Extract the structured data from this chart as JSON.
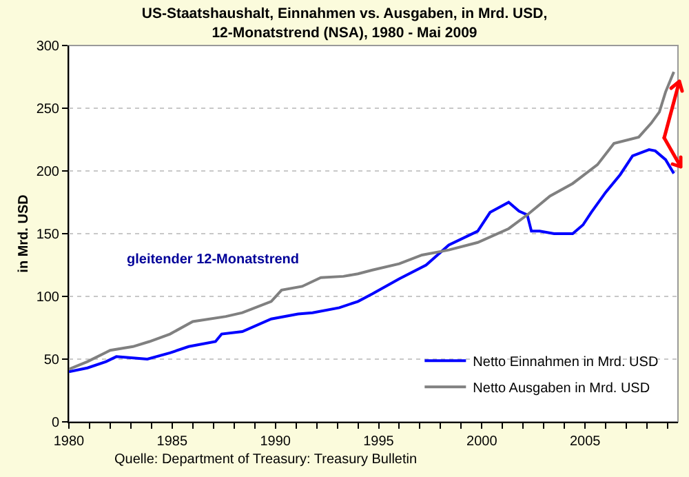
{
  "chart_data": {
    "type": "line",
    "title": "US-Staatshaushalt, Einnahmen vs. Ausgaben, in Mrd. USD, 12-Monatstrend (NSA), 1980 - Mai 2009",
    "ylabel": "in Mrd. USD",
    "annotations": [
      "gleitender 12-Monatstrend",
      "Quelle: Department of Treasury: Treasury Bulletin"
    ],
    "xlim": [
      1980,
      2009.5
    ],
    "xticks": [
      1980,
      {
        "value": 1981,
        "label": null
      },
      {
        "value": 1982,
        "label": null
      },
      {
        "value": 1983,
        "label": null
      },
      {
        "value": 1984,
        "label": null
      },
      1985,
      {
        "value": 1986,
        "label": null
      },
      {
        "value": 1987,
        "label": null
      },
      {
        "value": 1988,
        "label": null
      },
      {
        "value": 1989,
        "label": null
      },
      1990,
      {
        "value": 1991,
        "label": null
      },
      {
        "value": 1992,
        "label": null
      },
      {
        "value": 1993,
        "label": null
      },
      {
        "value": 1994,
        "label": null
      },
      1995,
      {
        "value": 1996,
        "label": null
      },
      {
        "value": 1997,
        "label": null
      },
      {
        "value": 1998,
        "label": null
      },
      {
        "value": 1999,
        "label": null
      },
      2000,
      {
        "value": 2001,
        "label": null
      },
      {
        "value": 2002,
        "label": null
      },
      {
        "value": 2003,
        "label": null
      },
      {
        "value": 2004,
        "label": null
      },
      2005,
      {
        "value": 2006,
        "label": null
      },
      {
        "value": 2007,
        "label": null
      },
      {
        "value": 2008,
        "label": null
      },
      {
        "value": 2009,
        "label": null
      }
    ],
    "ylim": [
      0,
      300
    ],
    "yticks": [
      0,
      50,
      100,
      150,
      200,
      250,
      300
    ],
    "grid": "y",
    "legend": "bottom right",
    "marker": "none",
    "line_style": "solid",
    "series": [
      {
        "name": "Netto Einnahmen in Mrd. USD",
        "color": "#0000ff",
        "x": [
          1980,
          1980.9,
          1981.8,
          1982.3,
          1983.1,
          1983.8,
          1984.9,
          1985.8,
          1987.1,
          1987.4,
          1988.4,
          1989.8,
          1991.1,
          1991.8,
          1993.1,
          1994,
          1994.7,
          1996,
          1997.3,
          1998.4,
          1999.8,
          2000.4,
          2001.3,
          2001.8,
          2002.2,
          2002.4,
          2002.8,
          2003.5,
          2004.4,
          2004.9,
          2005.3,
          2006,
          2006.7,
          2007.3,
          2008.1,
          2008.4,
          2008.9,
          2009.3
        ],
        "values": [
          40,
          43,
          48,
          52,
          51,
          50,
          55,
          60,
          64,
          70,
          72,
          82,
          86,
          87,
          91,
          96,
          102,
          114,
          125,
          141,
          152,
          167,
          175,
          168,
          165,
          152,
          152,
          150,
          150,
          157,
          167,
          183,
          197,
          212,
          217,
          216,
          209,
          198
        ]
      },
      {
        "name": "Netto Ausgaben in Mrd. USD",
        "color": "#808080",
        "x": [
          1980,
          1980.9,
          1982,
          1983.1,
          1983.9,
          1984.9,
          1986,
          1987.6,
          1988.4,
          1989.8,
          1990.3,
          1991.3,
          1992.2,
          1993.3,
          1994,
          1994.7,
          1996,
          1997.1,
          1998.4,
          1999.8,
          2001.3,
          2002.2,
          2003.3,
          2004.4,
          2005.6,
          2006.4,
          2007.6,
          2008.2,
          2008.6,
          2008.9,
          2009.3
        ],
        "values": [
          42,
          48,
          57,
          60,
          64,
          70,
          80,
          84,
          87,
          96,
          105,
          108,
          115,
          116,
          118,
          121,
          126,
          133,
          137,
          143,
          154,
          165,
          180,
          190,
          205,
          222,
          227,
          238,
          247,
          263,
          279
        ]
      }
    ]
  }
}
